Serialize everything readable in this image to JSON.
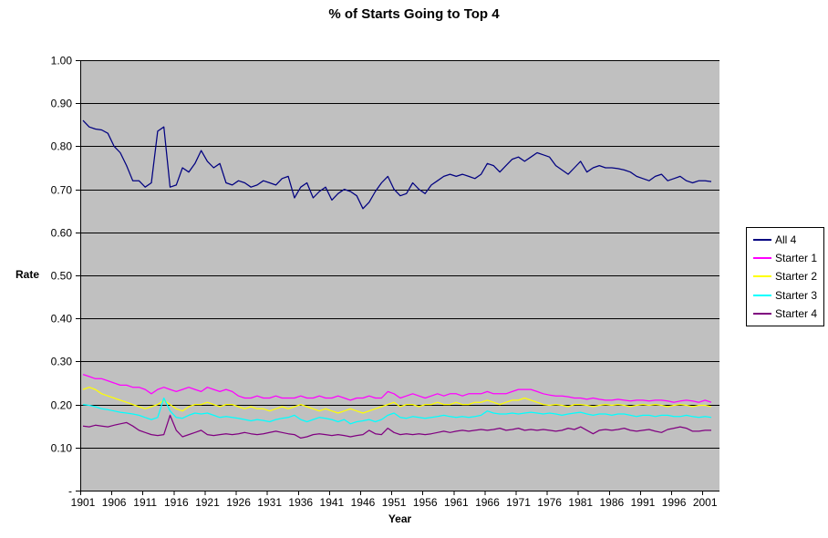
{
  "chart_data": {
    "type": "line",
    "title": "% of Starts Going to Top 4",
    "xlabel": "Year",
    "ylabel": "Rate",
    "ylim": [
      0,
      1.0
    ],
    "grid": true,
    "plot_background": "#c0c0c0",
    "gridline_color": "#000000",
    "legend_position": "right",
    "y_ticks": [
      {
        "v": 1.0,
        "label": "1.00"
      },
      {
        "v": 0.9,
        "label": "0.90"
      },
      {
        "v": 0.8,
        "label": "0.80"
      },
      {
        "v": 0.7,
        "label": "0.70"
      },
      {
        "v": 0.6,
        "label": "0.60"
      },
      {
        "v": 0.5,
        "label": "0.50"
      },
      {
        "v": 0.4,
        "label": "0.40"
      },
      {
        "v": 0.3,
        "label": "0.30"
      },
      {
        "v": 0.2,
        "label": "0.20"
      },
      {
        "v": 0.1,
        "label": "0.10"
      },
      {
        "v": 0.0,
        "label": "-"
      }
    ],
    "x_tick_labels": [
      1901,
      1906,
      1911,
      1916,
      1921,
      1926,
      1931,
      1936,
      1941,
      1946,
      1951,
      1956,
      1961,
      1966,
      1971,
      1976,
      1981,
      1986,
      1991,
      1996,
      2001
    ],
    "x": [
      1901,
      1902,
      1903,
      1904,
      1905,
      1906,
      1907,
      1908,
      1909,
      1910,
      1911,
      1912,
      1913,
      1914,
      1915,
      1916,
      1917,
      1918,
      1919,
      1920,
      1921,
      1922,
      1923,
      1924,
      1925,
      1926,
      1927,
      1928,
      1929,
      1930,
      1931,
      1932,
      1933,
      1934,
      1935,
      1936,
      1937,
      1938,
      1939,
      1940,
      1941,
      1942,
      1943,
      1944,
      1945,
      1946,
      1947,
      1948,
      1949,
      1950,
      1951,
      1952,
      1953,
      1954,
      1955,
      1956,
      1957,
      1958,
      1959,
      1960,
      1961,
      1962,
      1963,
      1964,
      1965,
      1966,
      1967,
      1968,
      1969,
      1970,
      1971,
      1972,
      1973,
      1974,
      1975,
      1976,
      1977,
      1978,
      1979,
      1980,
      1981,
      1982,
      1983,
      1984,
      1985,
      1986,
      1987,
      1988,
      1989,
      1990,
      1991,
      1992,
      1993,
      1994,
      1995,
      1996,
      1997,
      1998,
      1999,
      2000,
      2001,
      2002
    ],
    "series": [
      {
        "name": "All 4",
        "color": "#000080",
        "values": [
          0.86,
          0.845,
          0.84,
          0.838,
          0.83,
          0.8,
          0.785,
          0.755,
          0.72,
          0.72,
          0.705,
          0.715,
          0.835,
          0.845,
          0.705,
          0.71,
          0.75,
          0.74,
          0.76,
          0.79,
          0.765,
          0.75,
          0.76,
          0.715,
          0.71,
          0.72,
          0.715,
          0.705,
          0.71,
          0.72,
          0.715,
          0.71,
          0.725,
          0.73,
          0.68,
          0.705,
          0.715,
          0.68,
          0.695,
          0.705,
          0.675,
          0.69,
          0.7,
          0.695,
          0.685,
          0.655,
          0.67,
          0.695,
          0.715,
          0.73,
          0.7,
          0.685,
          0.69,
          0.715,
          0.7,
          0.69,
          0.71,
          0.72,
          0.73,
          0.735,
          0.73,
          0.735,
          0.73,
          0.725,
          0.735,
          0.76,
          0.755,
          0.74,
          0.755,
          0.77,
          0.775,
          0.765,
          0.775,
          0.785,
          0.78,
          0.775,
          0.755,
          0.745,
          0.735,
          0.75,
          0.765,
          0.74,
          0.75,
          0.755,
          0.75,
          0.75,
          0.748,
          0.745,
          0.74,
          0.73,
          0.725,
          0.72,
          0.73,
          0.735,
          0.72,
          0.725,
          0.73,
          0.72,
          0.715,
          0.72,
          0.72,
          0.718
        ]
      },
      {
        "name": "Starter 1",
        "color": "#FF00FF",
        "values": [
          0.27,
          0.265,
          0.26,
          0.26,
          0.255,
          0.25,
          0.245,
          0.245,
          0.24,
          0.24,
          0.235,
          0.225,
          0.235,
          0.24,
          0.235,
          0.23,
          0.235,
          0.24,
          0.235,
          0.23,
          0.24,
          0.235,
          0.23,
          0.235,
          0.23,
          0.22,
          0.215,
          0.215,
          0.22,
          0.215,
          0.215,
          0.22,
          0.215,
          0.215,
          0.215,
          0.22,
          0.215,
          0.215,
          0.22,
          0.215,
          0.215,
          0.22,
          0.215,
          0.21,
          0.215,
          0.215,
          0.22,
          0.215,
          0.215,
          0.23,
          0.225,
          0.215,
          0.22,
          0.225,
          0.22,
          0.215,
          0.22,
          0.225,
          0.22,
          0.225,
          0.225,
          0.22,
          0.225,
          0.225,
          0.225,
          0.23,
          0.225,
          0.225,
          0.225,
          0.23,
          0.235,
          0.235,
          0.235,
          0.23,
          0.225,
          0.222,
          0.22,
          0.22,
          0.218,
          0.215,
          0.215,
          0.212,
          0.215,
          0.212,
          0.21,
          0.21,
          0.212,
          0.21,
          0.208,
          0.21,
          0.21,
          0.208,
          0.21,
          0.21,
          0.208,
          0.205,
          0.208,
          0.21,
          0.208,
          0.205,
          0.21,
          0.205
        ]
      },
      {
        "name": "Starter 2",
        "color": "#FFFF00",
        "values": [
          0.235,
          0.24,
          0.235,
          0.225,
          0.22,
          0.215,
          0.21,
          0.205,
          0.2,
          0.195,
          0.19,
          0.195,
          0.2,
          0.21,
          0.2,
          0.19,
          0.185,
          0.195,
          0.2,
          0.2,
          0.205,
          0.2,
          0.195,
          0.2,
          0.2,
          0.195,
          0.19,
          0.195,
          0.19,
          0.19,
          0.185,
          0.19,
          0.195,
          0.19,
          0.195,
          0.2,
          0.195,
          0.19,
          0.185,
          0.19,
          0.185,
          0.18,
          0.185,
          0.19,
          0.185,
          0.18,
          0.185,
          0.19,
          0.195,
          0.2,
          0.205,
          0.195,
          0.2,
          0.2,
          0.195,
          0.2,
          0.2,
          0.205,
          0.2,
          0.2,
          0.205,
          0.2,
          0.2,
          0.205,
          0.205,
          0.21,
          0.205,
          0.2,
          0.205,
          0.21,
          0.21,
          0.215,
          0.21,
          0.205,
          0.2,
          0.198,
          0.2,
          0.198,
          0.195,
          0.2,
          0.2,
          0.198,
          0.195,
          0.198,
          0.2,
          0.198,
          0.2,
          0.198,
          0.195,
          0.198,
          0.2,
          0.198,
          0.2,
          0.198,
          0.195,
          0.198,
          0.2,
          0.198,
          0.195,
          0.198,
          0.198,
          0.195
        ]
      },
      {
        "name": "Starter 3",
        "color": "#00FFFF",
        "values": [
          0.2,
          0.198,
          0.195,
          0.19,
          0.188,
          0.185,
          0.182,
          0.18,
          0.178,
          0.175,
          0.17,
          0.165,
          0.17,
          0.215,
          0.185,
          0.17,
          0.168,
          0.175,
          0.18,
          0.178,
          0.18,
          0.175,
          0.17,
          0.172,
          0.17,
          0.168,
          0.165,
          0.162,
          0.165,
          0.163,
          0.16,
          0.165,
          0.168,
          0.17,
          0.175,
          0.165,
          0.16,
          0.165,
          0.17,
          0.168,
          0.165,
          0.16,
          0.165,
          0.155,
          0.16,
          0.162,
          0.165,
          0.16,
          0.165,
          0.175,
          0.18,
          0.17,
          0.168,
          0.172,
          0.17,
          0.168,
          0.17,
          0.172,
          0.175,
          0.172,
          0.17,
          0.172,
          0.17,
          0.172,
          0.175,
          0.185,
          0.18,
          0.178,
          0.178,
          0.18,
          0.178,
          0.18,
          0.182,
          0.18,
          0.178,
          0.18,
          0.178,
          0.175,
          0.178,
          0.18,
          0.182,
          0.178,
          0.175,
          0.178,
          0.178,
          0.175,
          0.178,
          0.178,
          0.175,
          0.172,
          0.175,
          0.175,
          0.172,
          0.175,
          0.175,
          0.172,
          0.172,
          0.175,
          0.172,
          0.17,
          0.172,
          0.17
        ]
      },
      {
        "name": "Starter 4",
        "color": "#800080",
        "values": [
          0.15,
          0.148,
          0.152,
          0.15,
          0.148,
          0.152,
          0.155,
          0.158,
          0.15,
          0.14,
          0.135,
          0.13,
          0.128,
          0.13,
          0.175,
          0.14,
          0.125,
          0.13,
          0.135,
          0.14,
          0.13,
          0.128,
          0.13,
          0.132,
          0.13,
          0.132,
          0.135,
          0.132,
          0.13,
          0.132,
          0.135,
          0.138,
          0.135,
          0.132,
          0.13,
          0.122,
          0.125,
          0.13,
          0.132,
          0.13,
          0.128,
          0.13,
          0.128,
          0.125,
          0.128,
          0.13,
          0.14,
          0.132,
          0.13,
          0.145,
          0.135,
          0.13,
          0.132,
          0.13,
          0.132,
          0.13,
          0.132,
          0.135,
          0.138,
          0.135,
          0.138,
          0.14,
          0.138,
          0.14,
          0.142,
          0.14,
          0.142,
          0.145,
          0.14,
          0.142,
          0.145,
          0.14,
          0.142,
          0.14,
          0.142,
          0.14,
          0.138,
          0.14,
          0.145,
          0.142,
          0.148,
          0.14,
          0.132,
          0.14,
          0.142,
          0.14,
          0.142,
          0.145,
          0.14,
          0.138,
          0.14,
          0.142,
          0.138,
          0.135,
          0.142,
          0.145,
          0.148,
          0.145,
          0.138,
          0.138,
          0.14,
          0.14
        ]
      }
    ]
  }
}
